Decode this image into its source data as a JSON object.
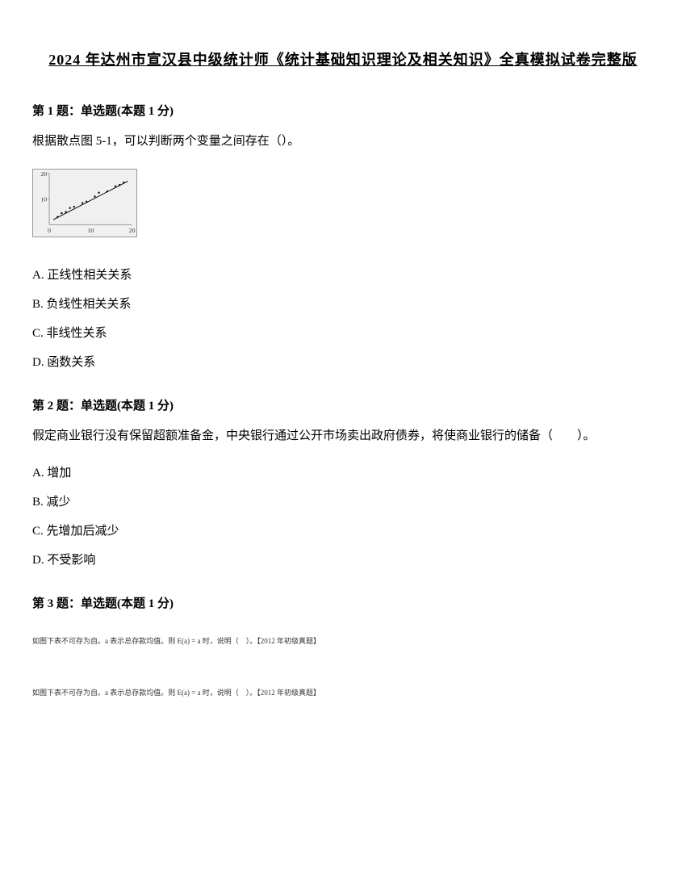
{
  "title": "2024 年达州市宣汉县中级统计师《统计基础知识理论及相关知识》全真模拟试卷完整版",
  "q1": {
    "header": "第 1 题：单选题(本题 1 分)",
    "text": "根据散点图 5-1，可以判断两个变量之间存在（）。",
    "optA": "A. 正线性相关关系",
    "optB": "B. 负线性相关关系",
    "optC": "C. 非线性关系",
    "optD": "D. 函数关系"
  },
  "q2": {
    "header": "第 2 题：单选题(本题 1 分)",
    "text": "假定商业银行没有保留超额准备金，中央银行通过公开市场卖出政府债券，将使商业银行的储备（　　）。",
    "optA": "A. 增加",
    "optB": "B. 减少",
    "optC": "C. 先增加后减少",
    "optD": "D. 不受影响"
  },
  "q3": {
    "header": "第 3 题：单选题(本题 1 分)",
    "smallText1": "如图下表不可存为自。a 表示总存款均值。则 E(a) = a 时，说明（　）。【2012 年初级真题】",
    "smallText2": "如图下表不可存为自。a 表示总存款均值。则 E(a) = a 时，说明（　）。【2012 年初级真题】"
  },
  "chart": {
    "type": "scatter",
    "background_color": "#f0f0f0",
    "grid_color": "#999999",
    "point_color": "#000000",
    "line_color": "#000000",
    "xlim": [
      0,
      20
    ],
    "ylim": [
      0,
      20
    ],
    "xticks": [
      0,
      10,
      20
    ],
    "yticks": [
      10,
      20
    ],
    "xtick_labels": [
      "0",
      "10",
      "20"
    ],
    "ytick_labels": [
      "10",
      "20"
    ],
    "points": [
      {
        "x": 2,
        "y": 3
      },
      {
        "x": 3,
        "y": 4.5
      },
      {
        "x": 4,
        "y": 5
      },
      {
        "x": 5,
        "y": 6.5
      },
      {
        "x": 6,
        "y": 7
      },
      {
        "x": 8,
        "y": 8.5
      },
      {
        "x": 9,
        "y": 9
      },
      {
        "x": 11,
        "y": 11
      },
      {
        "x": 12,
        "y": 12.5
      },
      {
        "x": 14,
        "y": 13
      },
      {
        "x": 16,
        "y": 15
      },
      {
        "x": 17,
        "y": 15.5
      },
      {
        "x": 18,
        "y": 16.5
      }
    ],
    "line_start": {
      "x": 1,
      "y": 2
    },
    "line_end": {
      "x": 19,
      "y": 17
    },
    "xlabel": "20→"
  }
}
